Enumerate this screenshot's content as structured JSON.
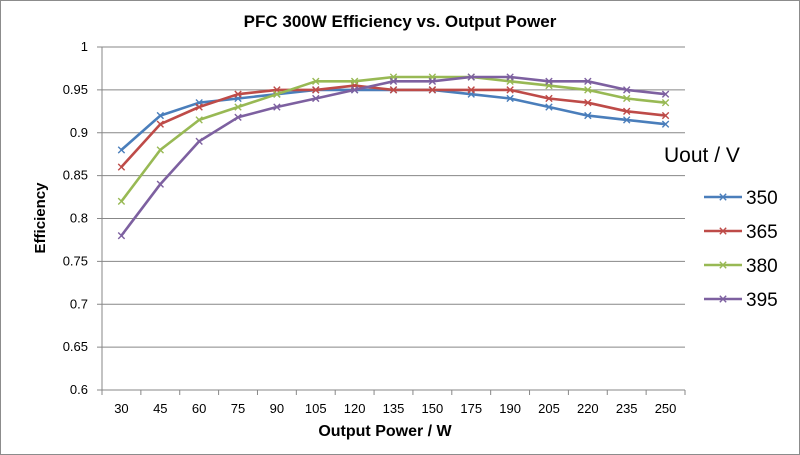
{
  "chart_data": {
    "type": "line",
    "title": "PFC 300W Efficiency vs. Output Power",
    "xlabel": "Output Power / W",
    "ylabel": "Efficiency",
    "categories": [
      "30",
      "45",
      "60",
      "75",
      "90",
      "105",
      "120",
      "135",
      "150",
      "175",
      "190",
      "205",
      "220",
      "235",
      "250"
    ],
    "ylim": [
      0.6,
      1
    ],
    "yticks": [
      "0.6",
      "0.65",
      "0.7",
      "0.75",
      "0.8",
      "0.85",
      "0.9",
      "0.95",
      "1"
    ],
    "grid": "horizontal",
    "legend_title": "Uout / V",
    "legend_position": "right",
    "series": [
      {
        "name": "350",
        "color": "#4a7ebb",
        "values": [
          0.88,
          0.92,
          0.935,
          0.94,
          0.945,
          0.95,
          0.95,
          0.95,
          0.95,
          0.945,
          0.94,
          0.93,
          0.92,
          0.915,
          0.91
        ]
      },
      {
        "name": "365",
        "color": "#be4b48",
        "values": [
          0.86,
          0.91,
          0.93,
          0.945,
          0.95,
          0.95,
          0.955,
          0.95,
          0.95,
          0.95,
          0.95,
          0.94,
          0.935,
          0.925,
          0.92
        ]
      },
      {
        "name": "380",
        "color": "#98b954",
        "values": [
          0.82,
          0.88,
          0.915,
          0.93,
          0.945,
          0.96,
          0.96,
          0.965,
          0.965,
          0.965,
          0.96,
          0.955,
          0.95,
          0.94,
          0.935
        ]
      },
      {
        "name": "395",
        "color": "#7d60a0",
        "values": [
          0.78,
          0.84,
          0.89,
          0.918,
          0.93,
          0.94,
          0.95,
          0.96,
          0.96,
          0.965,
          0.965,
          0.96,
          0.96,
          0.95,
          0.945
        ]
      }
    ]
  }
}
